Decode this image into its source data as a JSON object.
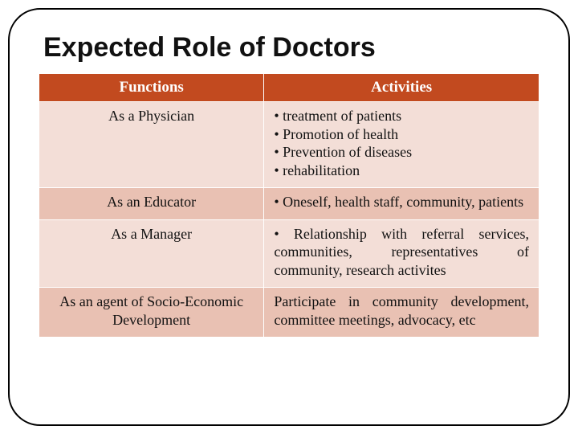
{
  "title": "Expected Role of Doctors",
  "table": {
    "header_bg": "#c24a1f",
    "header_color": "#ffffff",
    "row_odd_bg": "#f3ded7",
    "row_even_bg": "#e9c1b3",
    "border_color": "#ffffff",
    "text_color": "#111111",
    "col_widths": [
      "45%",
      "55%"
    ],
    "columns": [
      "Functions",
      "Activities"
    ],
    "rows": [
      {
        "function": "As a Physician",
        "activities": [
          "• treatment of patients",
          "• Promotion of health",
          "• Prevention of diseases",
          "• rehabilitation"
        ]
      },
      {
        "function": "As an Educator",
        "activities": [
          "• Oneself, health staff, community, patients"
        ]
      },
      {
        "function": "As a Manager",
        "activities": [
          "• Relationship with referral services, communities, representatives of community, research activites"
        ]
      },
      {
        "function": "As an agent of Socio-Economic Development",
        "activities": [
          "Participate in community development, committee meetings, advocacy, etc"
        ]
      }
    ]
  },
  "title_fontsize": 34,
  "cell_fontsize": 18,
  "header_fontsize": 19
}
